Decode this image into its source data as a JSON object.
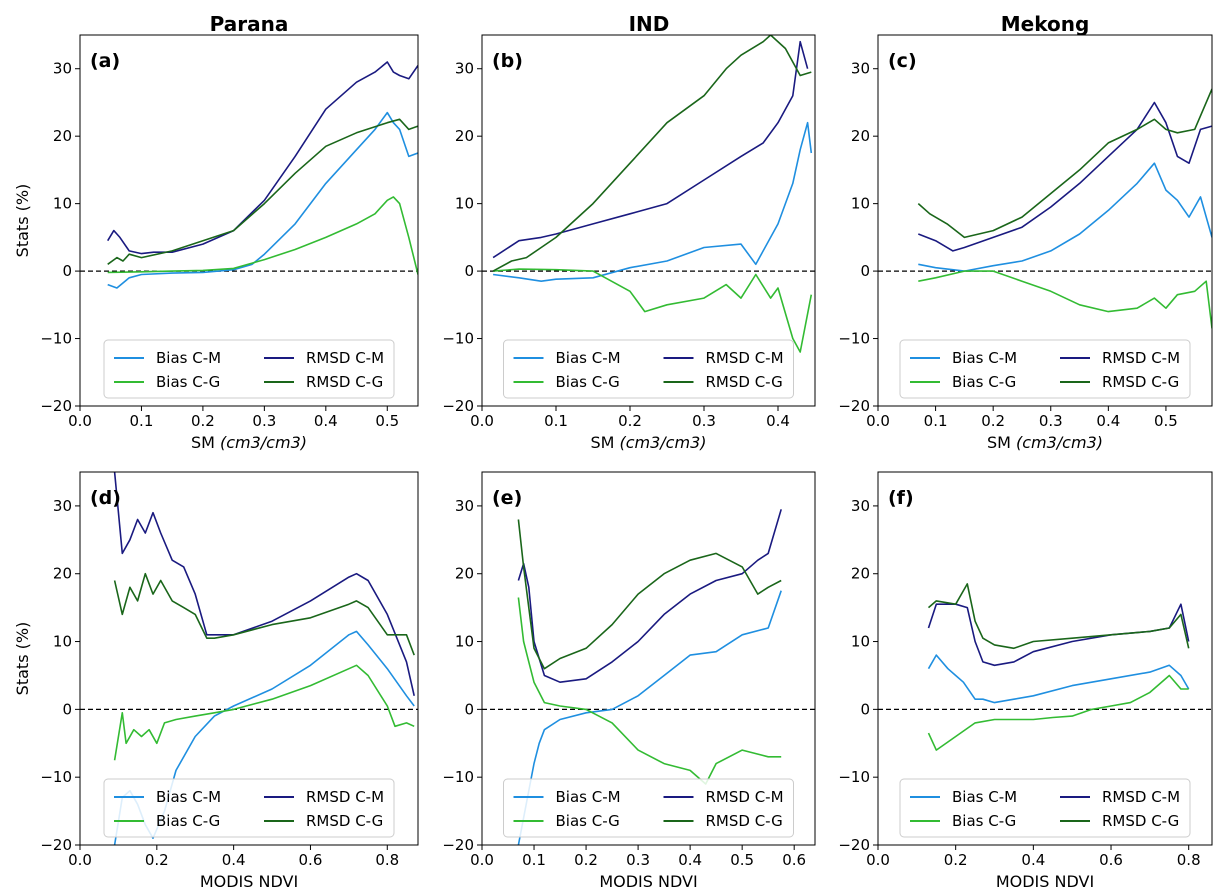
{
  "column_titles": [
    "Parana",
    "IND",
    "Mekong"
  ],
  "colors": {
    "Bias C-M": "#1f8fe0",
    "RMSD C-M": "#1a1a80",
    "Bias C-G": "#33bb33",
    "RMSD C-G": "#1a661a"
  },
  "chart_data": [
    {
      "type": "line",
      "label": "(a)",
      "title": "Parana",
      "xlabel": "SM",
      "xlabel_unit": "(cm3/cm3)",
      "ylabel": "Stats (%)",
      "xlim": [
        0.0,
        0.55
      ],
      "ylim": [
        -20,
        35
      ],
      "xticks": [
        "0.0",
        "0.1",
        "0.2",
        "0.3",
        "0.4",
        "0.5"
      ],
      "yticks": [
        "−20",
        "−10",
        "0",
        "10",
        "20",
        "30"
      ],
      "grid": false,
      "legend": "bottom-center",
      "series": [
        {
          "name": "Bias C-M",
          "x": [
            0.045,
            0.06,
            0.08,
            0.1,
            0.15,
            0.2,
            0.25,
            0.28,
            0.3,
            0.35,
            0.4,
            0.45,
            0.48,
            0.5,
            0.51,
            0.52,
            0.535,
            0.55
          ],
          "y": [
            -2,
            -2.5,
            -1,
            -0.5,
            -0.3,
            -0.2,
            0.2,
            1,
            2.5,
            7,
            13,
            18,
            21,
            23.5,
            22,
            21,
            17,
            17.5
          ]
        },
        {
          "name": "RMSD C-M",
          "x": [
            0.045,
            0.055,
            0.06,
            0.065,
            0.08,
            0.1,
            0.12,
            0.15,
            0.2,
            0.25,
            0.3,
            0.35,
            0.4,
            0.45,
            0.48,
            0.5,
            0.51,
            0.52,
            0.535,
            0.55
          ],
          "y": [
            4.5,
            6,
            5.5,
            5,
            3,
            2.6,
            2.8,
            2.8,
            4,
            6,
            10.5,
            17,
            24,
            28,
            29.5,
            31,
            29.5,
            29,
            28.5,
            30.5
          ]
        },
        {
          "name": "Bias C-G",
          "x": [
            0.045,
            0.1,
            0.15,
            0.2,
            0.25,
            0.3,
            0.35,
            0.4,
            0.45,
            0.48,
            0.5,
            0.51,
            0.52,
            0.535,
            0.55
          ],
          "y": [
            -0.2,
            -0.1,
            0,
            0.1,
            0.4,
            1.7,
            3.2,
            5,
            7,
            8.5,
            10.5,
            11,
            10,
            5,
            -0.5
          ]
        },
        {
          "name": "RMSD C-G",
          "x": [
            0.045,
            0.06,
            0.07,
            0.08,
            0.1,
            0.15,
            0.2,
            0.25,
            0.3,
            0.35,
            0.4,
            0.45,
            0.5,
            0.52,
            0.535,
            0.55
          ],
          "y": [
            1,
            2,
            1.5,
            2.5,
            2,
            3,
            4.5,
            6,
            10,
            14.5,
            18.5,
            20.5,
            22,
            22.5,
            21,
            21.5
          ]
        }
      ]
    },
    {
      "type": "line",
      "label": "(b)",
      "title": "IND",
      "xlabel": "SM",
      "xlabel_unit": "(cm3/cm3)",
      "ylabel": "",
      "xlim": [
        0.0,
        0.45
      ],
      "ylim": [
        -20,
        35
      ],
      "xticks": [
        "0.0",
        "0.1",
        "0.2",
        "0.3",
        "0.4"
      ],
      "yticks": [
        "−20",
        "−10",
        "0",
        "10",
        "20",
        "30"
      ],
      "grid": false,
      "legend": "bottom-center",
      "series": [
        {
          "name": "Bias C-M",
          "x": [
            0.015,
            0.05,
            0.08,
            0.1,
            0.15,
            0.2,
            0.25,
            0.3,
            0.35,
            0.37,
            0.4,
            0.42,
            0.43,
            0.44,
            0.445
          ],
          "y": [
            -0.5,
            -1,
            -1.5,
            -1.2,
            -1,
            0.5,
            1.5,
            3.5,
            4,
            1,
            7,
            13,
            18,
            22,
            17.5
          ]
        },
        {
          "name": "RMSD C-M",
          "x": [
            0.015,
            0.05,
            0.08,
            0.1,
            0.15,
            0.2,
            0.25,
            0.3,
            0.35,
            0.38,
            0.4,
            0.42,
            0.43,
            0.44
          ],
          "y": [
            2,
            4.5,
            5,
            5.5,
            7,
            8.5,
            10,
            13.5,
            17,
            19,
            22,
            26,
            34,
            30
          ]
        },
        {
          "name": "Bias C-G",
          "x": [
            0.015,
            0.05,
            0.1,
            0.15,
            0.2,
            0.22,
            0.25,
            0.3,
            0.33,
            0.35,
            0.37,
            0.39,
            0.4,
            0.42,
            0.43,
            0.445
          ],
          "y": [
            0,
            0.3,
            0.2,
            0,
            -3,
            -6,
            -5,
            -4,
            -2,
            -4,
            -0.5,
            -4,
            -2.5,
            -10,
            -12,
            -3.5
          ]
        },
        {
          "name": "RMSD C-G",
          "x": [
            0.015,
            0.04,
            0.06,
            0.08,
            0.1,
            0.15,
            0.2,
            0.25,
            0.3,
            0.33,
            0.35,
            0.38,
            0.39,
            0.41,
            0.43,
            0.445
          ],
          "y": [
            0,
            1.5,
            2,
            3.5,
            5,
            10,
            16,
            22,
            26,
            30,
            32,
            34,
            35,
            33,
            29,
            29.5
          ]
        }
      ]
    },
    {
      "type": "line",
      "label": "(c)",
      "title": "Mekong",
      "xlabel": "SM",
      "xlabel_unit": "(cm3/cm3)",
      "ylabel": "",
      "xlim": [
        0.0,
        0.58
      ],
      "ylim": [
        -20,
        35
      ],
      "xticks": [
        "0.0",
        "0.1",
        "0.2",
        "0.3",
        "0.4",
        "0.5"
      ],
      "yticks": [
        "−20",
        "−10",
        "0",
        "10",
        "20",
        "30"
      ],
      "grid": false,
      "legend": "bottom-center",
      "series": [
        {
          "name": "Bias C-M",
          "x": [
            0.07,
            0.1,
            0.15,
            0.2,
            0.25,
            0.3,
            0.35,
            0.4,
            0.45,
            0.48,
            0.5,
            0.52,
            0.54,
            0.56,
            0.58
          ],
          "y": [
            1,
            0.5,
            0,
            0.8,
            1.5,
            3,
            5.5,
            9,
            13,
            16,
            12,
            10.5,
            8,
            11,
            5
          ]
        },
        {
          "name": "RMSD C-M",
          "x": [
            0.07,
            0.1,
            0.13,
            0.15,
            0.2,
            0.25,
            0.3,
            0.35,
            0.4,
            0.45,
            0.48,
            0.5,
            0.52,
            0.54,
            0.56,
            0.58
          ],
          "y": [
            5.5,
            4.5,
            3,
            3.5,
            5,
            6.5,
            9.5,
            13,
            17,
            21,
            25,
            22,
            17,
            16,
            21,
            21.5
          ]
        },
        {
          "name": "Bias C-G",
          "x": [
            0.07,
            0.1,
            0.15,
            0.2,
            0.25,
            0.3,
            0.35,
            0.4,
            0.45,
            0.48,
            0.5,
            0.52,
            0.55,
            0.57,
            0.58
          ],
          "y": [
            -1.5,
            -1,
            0,
            0,
            -1.5,
            -3,
            -5,
            -6,
            -5.5,
            -4,
            -5.5,
            -3.5,
            -3,
            -1.5,
            -8.5
          ]
        },
        {
          "name": "RMSD C-G",
          "x": [
            0.07,
            0.09,
            0.12,
            0.15,
            0.2,
            0.25,
            0.3,
            0.35,
            0.4,
            0.45,
            0.48,
            0.5,
            0.52,
            0.55,
            0.58
          ],
          "y": [
            10,
            8.5,
            7,
            5,
            6,
            8,
            11.5,
            15,
            19,
            21,
            22.5,
            21,
            20.5,
            21,
            27
          ]
        }
      ]
    },
    {
      "type": "line",
      "label": "(d)",
      "title": "",
      "xlabel": "MODIS NDVI",
      "xlabel_unit": "",
      "ylabel": "Stats (%)",
      "xlim": [
        0.0,
        0.88
      ],
      "ylim": [
        -20,
        35
      ],
      "xticks": [
        "0.0",
        "0.2",
        "0.4",
        "0.6",
        "0.8"
      ],
      "yticks": [
        "−20",
        "−10",
        "0",
        "10",
        "20",
        "30"
      ],
      "grid": false,
      "legend": "bottom-center",
      "series": [
        {
          "name": "Bias C-M",
          "x": [
            0.09,
            0.11,
            0.13,
            0.15,
            0.17,
            0.19,
            0.22,
            0.25,
            0.3,
            0.35,
            0.4,
            0.5,
            0.6,
            0.7,
            0.72,
            0.75,
            0.8,
            0.85,
            0.87
          ],
          "y": [
            -20,
            -13,
            -12,
            -14,
            -17,
            -19,
            -15,
            -9,
            -4,
            -1,
            0.5,
            3,
            6.5,
            11,
            11.5,
            9.5,
            6,
            2,
            0.5
          ]
        },
        {
          "name": "RMSD C-M",
          "x": [
            0.09,
            0.11,
            0.13,
            0.15,
            0.17,
            0.19,
            0.21,
            0.24,
            0.27,
            0.3,
            0.33,
            0.35,
            0.4,
            0.5,
            0.6,
            0.7,
            0.72,
            0.75,
            0.8,
            0.85,
            0.87
          ],
          "y": [
            35,
            23,
            25,
            28,
            26,
            29,
            26,
            22,
            21,
            17,
            11,
            11,
            11,
            13,
            16,
            19.5,
            20,
            19,
            14,
            7,
            2
          ]
        },
        {
          "name": "Bias C-G",
          "x": [
            0.09,
            0.11,
            0.12,
            0.14,
            0.16,
            0.18,
            0.2,
            0.22,
            0.25,
            0.3,
            0.35,
            0.4,
            0.5,
            0.6,
            0.7,
            0.72,
            0.75,
            0.8,
            0.82,
            0.85,
            0.87
          ],
          "y": [
            -7.5,
            -0.5,
            -5,
            -3,
            -4,
            -3,
            -5,
            -2,
            -1.5,
            -1,
            -0.5,
            0,
            1.5,
            3.5,
            6,
            6.5,
            5,
            0.5,
            -2.5,
            -2,
            -2.5
          ]
        },
        {
          "name": "RMSD C-G",
          "x": [
            0.09,
            0.11,
            0.13,
            0.15,
            0.17,
            0.19,
            0.21,
            0.24,
            0.27,
            0.3,
            0.33,
            0.35,
            0.4,
            0.5,
            0.6,
            0.7,
            0.72,
            0.75,
            0.8,
            0.85,
            0.87
          ],
          "y": [
            19,
            14,
            18,
            16,
            20,
            17,
            19,
            16,
            15,
            14,
            10.5,
            10.5,
            11,
            12.5,
            13.5,
            15.5,
            16,
            15,
            11,
            11,
            8
          ]
        }
      ]
    },
    {
      "type": "line",
      "label": "(e)",
      "title": "",
      "xlabel": "MODIS NDVI",
      "xlabel_unit": "",
      "ylabel": "",
      "xlim": [
        0.0,
        0.64
      ],
      "ylim": [
        -20,
        35
      ],
      "xticks": [
        "0.0",
        "0.1",
        "0.2",
        "0.3",
        "0.4",
        "0.5",
        "0.6"
      ],
      "yticks": [
        "−20",
        "−10",
        "0",
        "10",
        "20",
        "30"
      ],
      "grid": false,
      "legend": "bottom-center",
      "series": [
        {
          "name": "Bias C-M",
          "x": [
            0.07,
            0.08,
            0.09,
            0.1,
            0.11,
            0.12,
            0.15,
            0.2,
            0.25,
            0.3,
            0.35,
            0.4,
            0.45,
            0.5,
            0.55,
            0.575
          ],
          "y": [
            -20,
            -16,
            -12,
            -8,
            -5,
            -3,
            -1.5,
            -0.5,
            0,
            2,
            5,
            8,
            8.5,
            11,
            12,
            17.5
          ]
        },
        {
          "name": "RMSD C-M",
          "x": [
            0.07,
            0.08,
            0.09,
            0.1,
            0.12,
            0.15,
            0.2,
            0.25,
            0.3,
            0.35,
            0.4,
            0.45,
            0.5,
            0.53,
            0.55,
            0.575
          ],
          "y": [
            19,
            21.5,
            18,
            10,
            5,
            4,
            4.5,
            7,
            10,
            14,
            17,
            19,
            20,
            22,
            23,
            29.5
          ]
        },
        {
          "name": "Bias C-G",
          "x": [
            0.07,
            0.08,
            0.09,
            0.1,
            0.12,
            0.15,
            0.2,
            0.25,
            0.3,
            0.35,
            0.4,
            0.43,
            0.45,
            0.5,
            0.55,
            0.575
          ],
          "y": [
            16.5,
            10,
            7,
            4,
            1,
            0.5,
            0,
            -2,
            -6,
            -8,
            -9,
            -11,
            -8,
            -6,
            -7,
            -7
          ]
        },
        {
          "name": "RMSD C-G",
          "x": [
            0.07,
            0.08,
            0.09,
            0.1,
            0.12,
            0.15,
            0.2,
            0.25,
            0.3,
            0.35,
            0.4,
            0.45,
            0.5,
            0.53,
            0.55,
            0.575
          ],
          "y": [
            28,
            21,
            15,
            9,
            6,
            7.5,
            9,
            12.5,
            17,
            20,
            22,
            23,
            21,
            17,
            18,
            19
          ]
        }
      ]
    },
    {
      "type": "line",
      "label": "(f)",
      "title": "",
      "xlabel": "MODIS NDVI",
      "xlabel_unit": "",
      "ylabel": "",
      "xlim": [
        0.0,
        0.86
      ],
      "ylim": [
        -20,
        35
      ],
      "xticks": [
        "0.0",
        "0.2",
        "0.4",
        "0.6",
        "0.8"
      ],
      "yticks": [
        "−20",
        "−10",
        "0",
        "10",
        "20",
        "30"
      ],
      "grid": false,
      "legend": "bottom-center",
      "series": [
        {
          "name": "Bias C-M",
          "x": [
            0.13,
            0.15,
            0.18,
            0.2,
            0.22,
            0.25,
            0.27,
            0.3,
            0.35,
            0.4,
            0.5,
            0.6,
            0.7,
            0.75,
            0.78,
            0.8
          ],
          "y": [
            6,
            8,
            6,
            5,
            4,
            1.5,
            1.5,
            1,
            1.5,
            2,
            3.5,
            4.5,
            5.5,
            6.5,
            5,
            3
          ]
        },
        {
          "name": "RMSD C-M",
          "x": [
            0.13,
            0.15,
            0.2,
            0.23,
            0.25,
            0.27,
            0.3,
            0.35,
            0.4,
            0.5,
            0.6,
            0.7,
            0.75,
            0.78,
            0.8
          ],
          "y": [
            12,
            15.5,
            15.5,
            15,
            10,
            7,
            6.5,
            7,
            8.5,
            10,
            11,
            11.5,
            12,
            15.5,
            10
          ]
        },
        {
          "name": "Bias C-G",
          "x": [
            0.13,
            0.15,
            0.2,
            0.25,
            0.3,
            0.35,
            0.4,
            0.45,
            0.5,
            0.55,
            0.6,
            0.65,
            0.7,
            0.75,
            0.78,
            0.8
          ],
          "y": [
            -3.5,
            -6,
            -4,
            -2,
            -1.5,
            -1.5,
            -1.5,
            -1.2,
            -1,
            0,
            0.5,
            1,
            2.5,
            5,
            3,
            3
          ]
        },
        {
          "name": "RMSD C-G",
          "x": [
            0.13,
            0.15,
            0.2,
            0.23,
            0.25,
            0.27,
            0.3,
            0.35,
            0.4,
            0.5,
            0.6,
            0.7,
            0.75,
            0.78,
            0.8
          ],
          "y": [
            15,
            16,
            15.5,
            18.5,
            13,
            10.5,
            9.5,
            9,
            10,
            10.5,
            11,
            11.5,
            12,
            14,
            9
          ]
        }
      ]
    }
  ]
}
